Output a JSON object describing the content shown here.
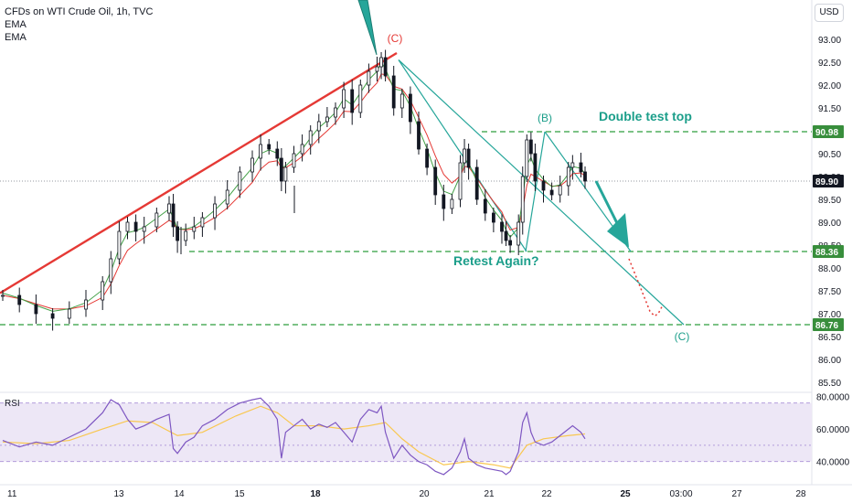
{
  "chart_data": {
    "type": "candlestick",
    "title": "CFDs on WTI Crude Oil, 1h, TVC",
    "indicators": [
      "EMA",
      "EMA"
    ],
    "currency": "USD",
    "current_price": "89.90",
    "ylim": [
      85.3,
      93.3
    ],
    "y_ticks": [
      "93.00",
      "92.50",
      "92.00",
      "91.50",
      "91.00",
      "90.50",
      "90.00",
      "89.50",
      "89.00",
      "88.50",
      "88.00",
      "87.50",
      "87.00",
      "86.50",
      "86.00",
      "85.50"
    ],
    "x_ticks": [
      "11",
      "13",
      "14",
      "15",
      "18",
      "20",
      "21",
      "22",
      "25",
      "03:00",
      "27",
      "28"
    ],
    "price_labels": [
      {
        "label": "90.98",
        "value": 90.98,
        "style": "green"
      },
      {
        "label": "89.90",
        "value": 89.9,
        "style": "dark"
      },
      {
        "label": "88.36",
        "value": 88.36,
        "style": "green"
      },
      {
        "label": "86.76",
        "value": 86.76,
        "style": "green"
      }
    ],
    "horizontal_levels": [
      90.98,
      88.36,
      86.76
    ],
    "annotations": [
      {
        "text": "(C)",
        "color": "#e53935"
      },
      {
        "text": "(B)",
        "color": "#1b9e8a"
      },
      {
        "text": "Double test top",
        "color": "#1b9e8a"
      },
      {
        "text": "Retest Again?",
        "color": "#1b9e8a"
      },
      {
        "text": "(C)",
        "color": "#1b9e8a"
      }
    ],
    "close_path": [
      [
        0,
        87.4
      ],
      [
        4,
        87.2
      ],
      [
        8,
        87.0
      ],
      [
        12,
        86.9
      ],
      [
        16,
        87.1
      ],
      [
        20,
        87.3
      ],
      [
        24,
        87.7
      ],
      [
        26,
        88.2
      ],
      [
        28,
        88.8
      ],
      [
        30,
        89.0
      ],
      [
        32,
        88.8
      ],
      [
        34,
        88.9
      ],
      [
        37,
        89.2
      ],
      [
        40,
        89.4
      ],
      [
        41,
        88.9
      ],
      [
        42,
        88.6
      ],
      [
        44,
        88.8
      ],
      [
        46,
        88.9
      ],
      [
        48,
        89.1
      ],
      [
        51,
        89.4
      ],
      [
        54,
        89.7
      ],
      [
        57,
        90.1
      ],
      [
        60,
        90.4
      ],
      [
        62,
        90.7
      ],
      [
        64,
        90.6
      ],
      [
        66,
        90.4
      ],
      [
        67,
        89.9
      ],
      [
        68,
        90.2
      ],
      [
        70,
        90.5
      ],
      [
        72,
        90.7
      ],
      [
        74,
        91.0
      ],
      [
        76,
        91.2
      ],
      [
        78,
        91.3
      ],
      [
        80,
        91.5
      ],
      [
        82,
        91.9
      ],
      [
        84,
        91.4
      ],
      [
        86,
        92.0
      ],
      [
        88,
        92.3
      ],
      [
        90,
        92.4
      ],
      [
        91,
        92.6
      ],
      [
        92,
        92.2
      ],
      [
        94,
        91.5
      ],
      [
        96,
        91.8
      ],
      [
        98,
        91.2
      ],
      [
        100,
        90.6
      ],
      [
        102,
        90.2
      ],
      [
        104,
        89.6
      ],
      [
        106,
        89.3
      ],
      [
        108,
        89.5
      ],
      [
        110,
        90.3
      ],
      [
        111,
        90.6
      ],
      [
        112,
        90.2
      ],
      [
        114,
        89.5
      ],
      [
        116,
        89.2
      ],
      [
        118,
        89.0
      ],
      [
        120,
        88.8
      ],
      [
        121,
        88.6
      ],
      [
        122,
        88.5
      ],
      [
        124,
        89.0
      ],
      [
        125,
        90.0
      ],
      [
        126,
        90.8
      ],
      [
        127,
        90.5
      ],
      [
        128,
        89.9
      ],
      [
        130,
        89.7
      ],
      [
        132,
        89.6
      ],
      [
        134,
        89.8
      ],
      [
        136,
        90.2
      ],
      [
        137,
        90.3
      ],
      [
        139,
        90.1
      ],
      [
        140,
        89.9
      ]
    ],
    "rsi": {
      "label": "RSI",
      "ylim": [
        28,
        82
      ],
      "y_ticks": [
        "80.0000",
        "60.0000",
        "40.0000"
      ],
      "band": [
        40,
        76
      ],
      "midline": 50,
      "rsi_path": [
        [
          0,
          53
        ],
        [
          4,
          49
        ],
        [
          8,
          52
        ],
        [
          12,
          50
        ],
        [
          16,
          55
        ],
        [
          20,
          60
        ],
        [
          24,
          70
        ],
        [
          26,
          78
        ],
        [
          28,
          75
        ],
        [
          30,
          66
        ],
        [
          32,
          60
        ],
        [
          34,
          62
        ],
        [
          37,
          66
        ],
        [
          40,
          69
        ],
        [
          41,
          48
        ],
        [
          42,
          45
        ],
        [
          44,
          52
        ],
        [
          46,
          55
        ],
        [
          48,
          62
        ],
        [
          51,
          66
        ],
        [
          54,
          72
        ],
        [
          57,
          76
        ],
        [
          60,
          78
        ],
        [
          62,
          79
        ],
        [
          64,
          74
        ],
        [
          66,
          66
        ],
        [
          67,
          42
        ],
        [
          68,
          58
        ],
        [
          70,
          62
        ],
        [
          72,
          66
        ],
        [
          74,
          60
        ],
        [
          76,
          63
        ],
        [
          78,
          61
        ],
        [
          80,
          64
        ],
        [
          82,
          58
        ],
        [
          84,
          52
        ],
        [
          86,
          66
        ],
        [
          88,
          72
        ],
        [
          90,
          70
        ],
        [
          91,
          74
        ],
        [
          92,
          58
        ],
        [
          94,
          42
        ],
        [
          96,
          50
        ],
        [
          98,
          44
        ],
        [
          100,
          40
        ],
        [
          102,
          38
        ],
        [
          104,
          34
        ],
        [
          106,
          32
        ],
        [
          108,
          36
        ],
        [
          110,
          46
        ],
        [
          111,
          54
        ],
        [
          112,
          42
        ],
        [
          114,
          38
        ],
        [
          116,
          36
        ],
        [
          118,
          35
        ],
        [
          120,
          34
        ],
        [
          121,
          32
        ],
        [
          122,
          34
        ],
        [
          124,
          46
        ],
        [
          125,
          64
        ],
        [
          126,
          70
        ],
        [
          127,
          58
        ],
        [
          128,
          52
        ],
        [
          130,
          50
        ],
        [
          132,
          52
        ],
        [
          134,
          56
        ],
        [
          136,
          60
        ],
        [
          137,
          62
        ],
        [
          139,
          58
        ],
        [
          140,
          54
        ]
      ],
      "ma_path": [
        [
          0,
          52
        ],
        [
          8,
          51
        ],
        [
          16,
          53
        ],
        [
          24,
          60
        ],
        [
          30,
          65
        ],
        [
          36,
          64
        ],
        [
          42,
          56
        ],
        [
          48,
          58
        ],
        [
          56,
          68
        ],
        [
          62,
          74
        ],
        [
          66,
          70
        ],
        [
          70,
          62
        ],
        [
          76,
          62
        ],
        [
          82,
          60
        ],
        [
          88,
          62
        ],
        [
          92,
          64
        ],
        [
          96,
          54
        ],
        [
          100,
          46
        ],
        [
          106,
          38
        ],
        [
          112,
          40
        ],
        [
          118,
          38
        ],
        [
          122,
          36
        ],
        [
          126,
          50
        ],
        [
          130,
          54
        ],
        [
          136,
          56
        ],
        [
          140,
          57
        ]
      ]
    }
  }
}
